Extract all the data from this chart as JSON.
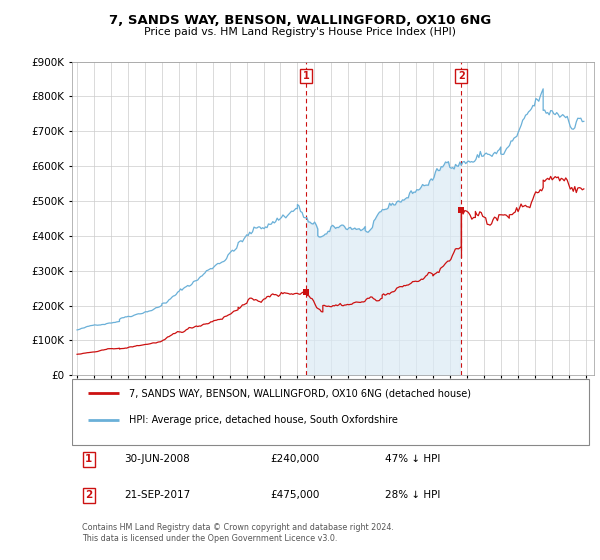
{
  "title": "7, SANDS WAY, BENSON, WALLINGFORD, OX10 6NG",
  "subtitle": "Price paid vs. HM Land Registry's House Price Index (HPI)",
  "hpi_label": "HPI: Average price, detached house, South Oxfordshire",
  "property_label": "7, SANDS WAY, BENSON, WALLINGFORD, OX10 6NG (detached house)",
  "sale1_date": "30-JUN-2008",
  "sale1_price": "£240,000",
  "sale1_hpi": "47% ↓ HPI",
  "sale2_date": "21-SEP-2017",
  "sale2_price": "£475,000",
  "sale2_hpi": "28% ↓ HPI",
  "hpi_color": "#6ab0d8",
  "hpi_fill_color": "#daeaf5",
  "property_color": "#cc1111",
  "marker_box_color": "#cc1111",
  "background_color": "#ffffff",
  "grid_color": "#cccccc",
  "ylim": [
    0,
    900000
  ],
  "xlim_start": 1994.7,
  "xlim_end": 2025.5,
  "footnote": "Contains HM Land Registry data © Crown copyright and database right 2024.\nThis data is licensed under the Open Government Licence v3.0.",
  "sale1_x": 2008.5,
  "sale1_y": 240000,
  "sale2_x": 2017.67,
  "sale2_y": 475000,
  "vline1_x": 2008.5,
  "vline2_x": 2017.67
}
